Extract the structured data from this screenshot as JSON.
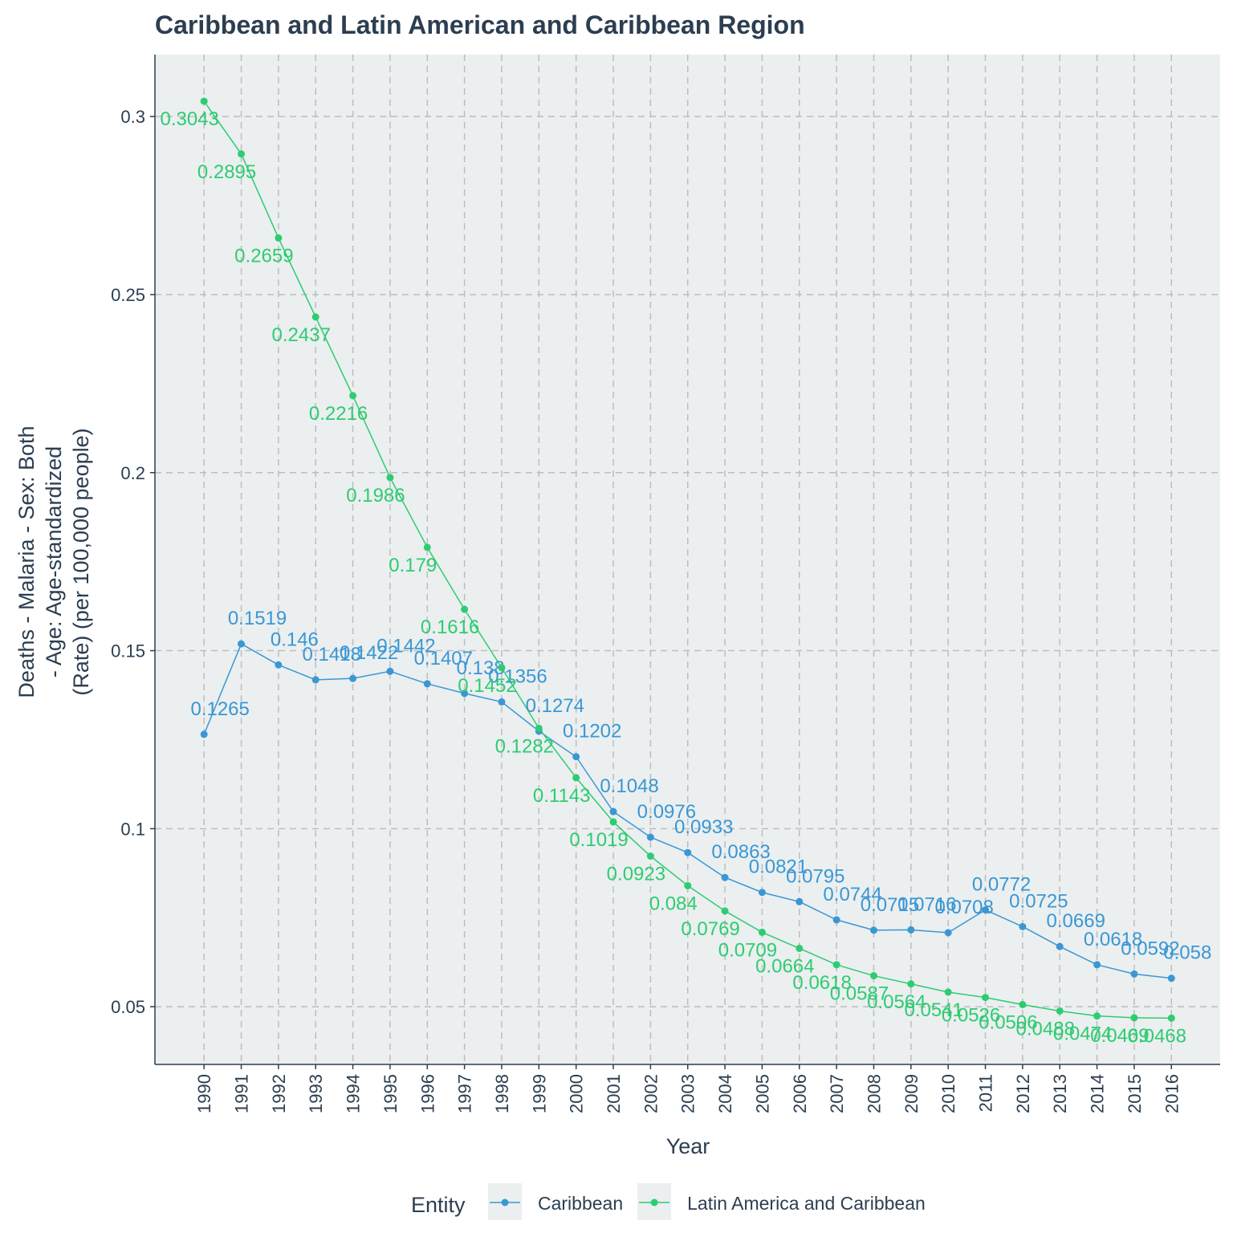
{
  "chart_data": {
    "type": "line",
    "title": "Caribbean and Latin American and Caribbean Region",
    "x_label": "Year",
    "y_label": [
      "Deaths - Malaria - Sex: Both",
      "- Age: Age-standardized",
      "(Rate) (per 100,000 people)"
    ],
    "legend_title": "Entity",
    "x": [
      1990,
      1991,
      1992,
      1993,
      1994,
      1995,
      1996,
      1997,
      1998,
      1999,
      2000,
      2001,
      2002,
      2003,
      2004,
      2005,
      2006,
      2007,
      2008,
      2009,
      2010,
      2011,
      2012,
      2013,
      2014,
      2015,
      2016
    ],
    "xlim": [
      1988.68,
      2017.31
    ],
    "xticks": [
      1990,
      1991,
      1992,
      1993,
      1994,
      1995,
      1996,
      1997,
      1998,
      1999,
      2000,
      2001,
      2002,
      2003,
      2004,
      2005,
      2006,
      2007,
      2008,
      2009,
      2010,
      2011,
      2012,
      2013,
      2014,
      2015,
      2016
    ],
    "ylim": [
      0.0338,
      0.3174
    ],
    "yticks": [
      0.05,
      0.1,
      0.15,
      0.2,
      0.25,
      0.3
    ],
    "grid": true,
    "legend_position": "bottom",
    "series": [
      {
        "name": "Caribbean",
        "color": "#3a97d4",
        "values": [
          0.1265,
          0.1519,
          0.146,
          0.1418,
          0.1422,
          0.1442,
          0.1407,
          0.138,
          0.1356,
          0.1274,
          0.1202,
          0.1048,
          0.0976,
          0.0933,
          0.0863,
          0.0821,
          0.0795,
          0.0744,
          0.0715,
          0.0716,
          0.0708,
          0.0772,
          0.0725,
          0.0669,
          0.0618,
          0.0592,
          0.058
        ]
      },
      {
        "name": "Latin America and Caribbean",
        "color": "#2ecc71",
        "values": [
          0.3043,
          0.2895,
          0.2659,
          0.2437,
          0.2216,
          0.1986,
          0.179,
          0.1616,
          0.1452,
          0.1282,
          0.1143,
          0.1019,
          0.0923,
          0.084,
          0.0769,
          0.0709,
          0.0664,
          0.0618,
          0.0587,
          0.0564,
          0.0541,
          0.0526,
          0.0506,
          0.0488,
          0.0474,
          0.0469,
          0.0468
        ]
      }
    ]
  }
}
